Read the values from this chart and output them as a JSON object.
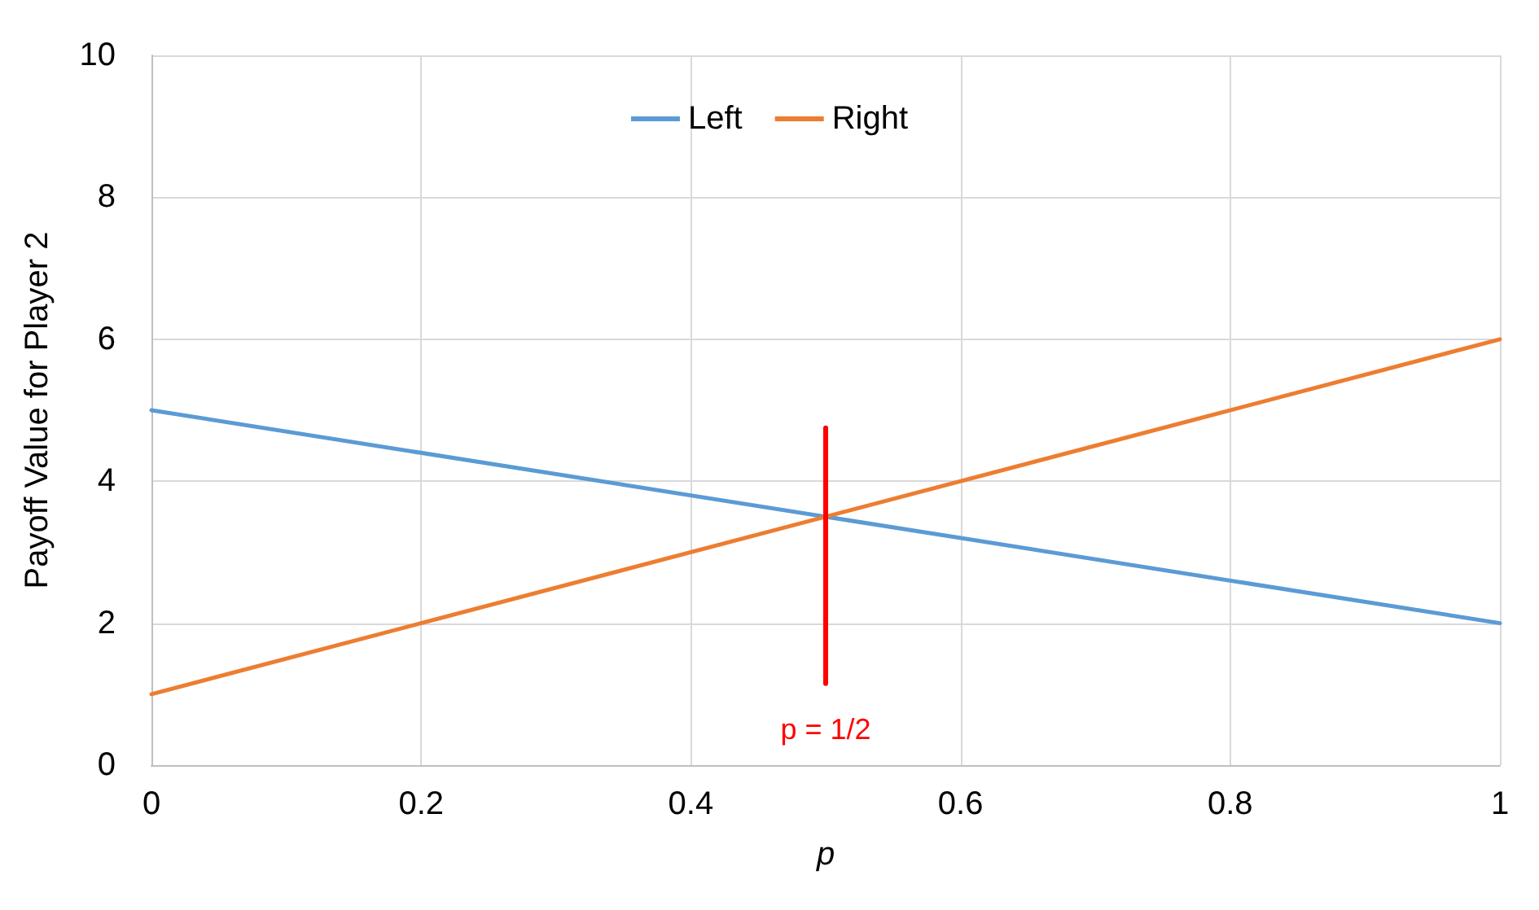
{
  "chart_data": {
    "type": "line",
    "xlabel": "p",
    "ylabel": "Payoff Value for Player 2",
    "x": [
      0,
      1
    ],
    "series": [
      {
        "name": "Left",
        "color": "#5b9bd5",
        "values": [
          5,
          2
        ]
      },
      {
        "name": "Right",
        "color": "#ed7d31",
        "values": [
          1,
          6
        ]
      },
      {
        "color": "#ff0000",
        "x": [
          0.5,
          0.5
        ],
        "values": [
          1.15,
          4.75
        ]
      }
    ],
    "annotations": [
      "p = 1/2"
    ],
    "xlim": [
      0,
      1
    ],
    "xticks": [
      0,
      0.2,
      0.4,
      0.6,
      0.8,
      1
    ],
    "ylim": [
      0,
      10
    ],
    "yticks": [
      0,
      2,
      4,
      6,
      8,
      10
    ],
    "grid": true,
    "legend": "top",
    "marker": "none",
    "line_style": "solid"
  }
}
